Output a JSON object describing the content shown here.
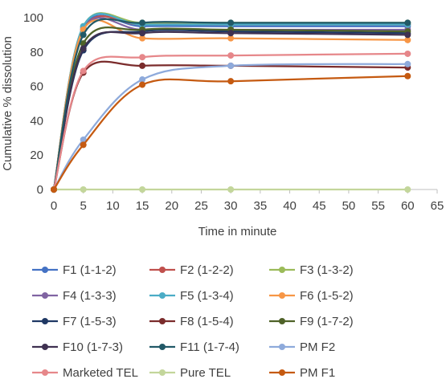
{
  "chart_data": {
    "type": "line",
    "title": "",
    "xlabel": "Time in minute",
    "ylabel": "Cumulative % dissolution",
    "xlim": [
      0,
      65
    ],
    "ylim": [
      0,
      100
    ],
    "x_ticks": [
      "0",
      "5",
      "10",
      "15",
      "20",
      "25",
      "30",
      "35",
      "40",
      "45",
      "50",
      "55",
      "60",
      "65"
    ],
    "y_ticks": [
      "0",
      "20",
      "40",
      "60",
      "80",
      "100"
    ],
    "grid": false,
    "legend_position": "bottom",
    "x": [
      0,
      5,
      15,
      30,
      60
    ],
    "series": [
      {
        "name": "F1 (1-1-2)",
        "color": "#4472c4",
        "values": [
          0,
          94,
          95,
          95,
          95
        ]
      },
      {
        "name": "F2 (1-2-2)",
        "color": "#c0504d",
        "values": [
          0,
          93,
          96,
          96,
          96
        ]
      },
      {
        "name": "F3 (1-3-2)",
        "color": "#9bbb59",
        "values": [
          0,
          95,
          97,
          97,
          97
        ]
      },
      {
        "name": "F4 (1-3-3)",
        "color": "#8064a2",
        "values": [
          0,
          93,
          93,
          93,
          93
        ]
      },
      {
        "name": "F5 (1-3-4)",
        "color": "#4bacc6",
        "values": [
          0,
          95,
          96,
          96,
          96
        ]
      },
      {
        "name": "F6 (1-5-2)",
        "color": "#f79646",
        "values": [
          0,
          93,
          88,
          88,
          87
        ]
      },
      {
        "name": "F7 (1-5-3)",
        "color": "#1f3864",
        "values": [
          0,
          81,
          92,
          92,
          91
        ]
      },
      {
        "name": "F8 (1-5-4)",
        "color": "#7b2c2c",
        "values": [
          0,
          68,
          72,
          72,
          71
        ]
      },
      {
        "name": "F9 (1-7-2)",
        "color": "#4f6228",
        "values": [
          0,
          85,
          93,
          93,
          92
        ]
      },
      {
        "name": "F10 (1-7-3)",
        "color": "#3f3151",
        "values": [
          0,
          82,
          91,
          91,
          90
        ]
      },
      {
        "name": "F11 (1-7-4)",
        "color": "#215967",
        "values": [
          0,
          90,
          97,
          97,
          97
        ]
      },
      {
        "name": "PM F2",
        "color": "#8eaadb",
        "values": [
          0,
          29,
          64,
          72,
          73
        ]
      },
      {
        "name": "Marketed TEL",
        "color": "#e6878a",
        "values": [
          0,
          69,
          77,
          78,
          79
        ]
      },
      {
        "name": "Pure TEL",
        "color": "#c3d69b",
        "values": [
          0,
          0,
          0,
          0,
          0
        ]
      },
      {
        "name": "PM F1",
        "color": "#c55a11",
        "values": [
          0,
          26,
          61,
          63,
          66
        ]
      }
    ]
  }
}
